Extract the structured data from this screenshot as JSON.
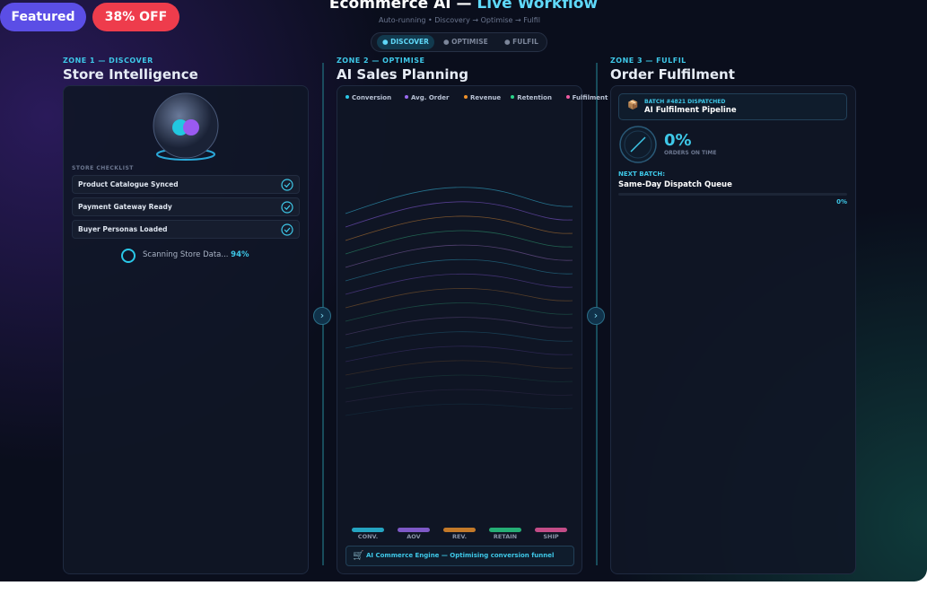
{
  "badges": {
    "featured": "Featured",
    "discount": "38% OFF"
  },
  "header": {
    "title_main": "Ecommerce AI —",
    "title_accent": "Live Workflow",
    "subtitle": "Auto-running • Discovery → Optimise → Fulfil",
    "steps": [
      "DISCOVER",
      "OPTIMISE",
      "FULFIL"
    ]
  },
  "zones": [
    {
      "tag": "ZONE 1 — DISCOVER",
      "title": "Store Intelligence",
      "checklist_title": "STORE CHECKLIST",
      "checklist": [
        "Product Catalogue Synced",
        "Payment Gateway Ready",
        "Buyer Personas Loaded"
      ],
      "status": "Scanning Store Data...",
      "progress": "94%"
    },
    {
      "tag": "ZONE 2 — OPTIMISE",
      "title": "AI Sales Planning",
      "legend": [
        "Conversion",
        "Avg. Order",
        "Revenue",
        "Retention",
        "Fulfilment"
      ],
      "bars": [
        "CONV.",
        "AOV",
        "REV.",
        "RETAIN",
        "SHIP"
      ],
      "footer": "AI Commerce Engine — Optimising conversion funnel"
    },
    {
      "tag": "ZONE 3 — FULFIL",
      "title": "Order Fulfilment",
      "batch": "BATCH #4821 DISPATCHED",
      "pipeline": "AI Fulfilment Pipeline",
      "rate": "0%",
      "rate_label": "ORDERS ON TIME",
      "next_label": "NEXT BATCH:",
      "next": "Same-Day Dispatch Queue",
      "progress": "0%"
    }
  ]
}
